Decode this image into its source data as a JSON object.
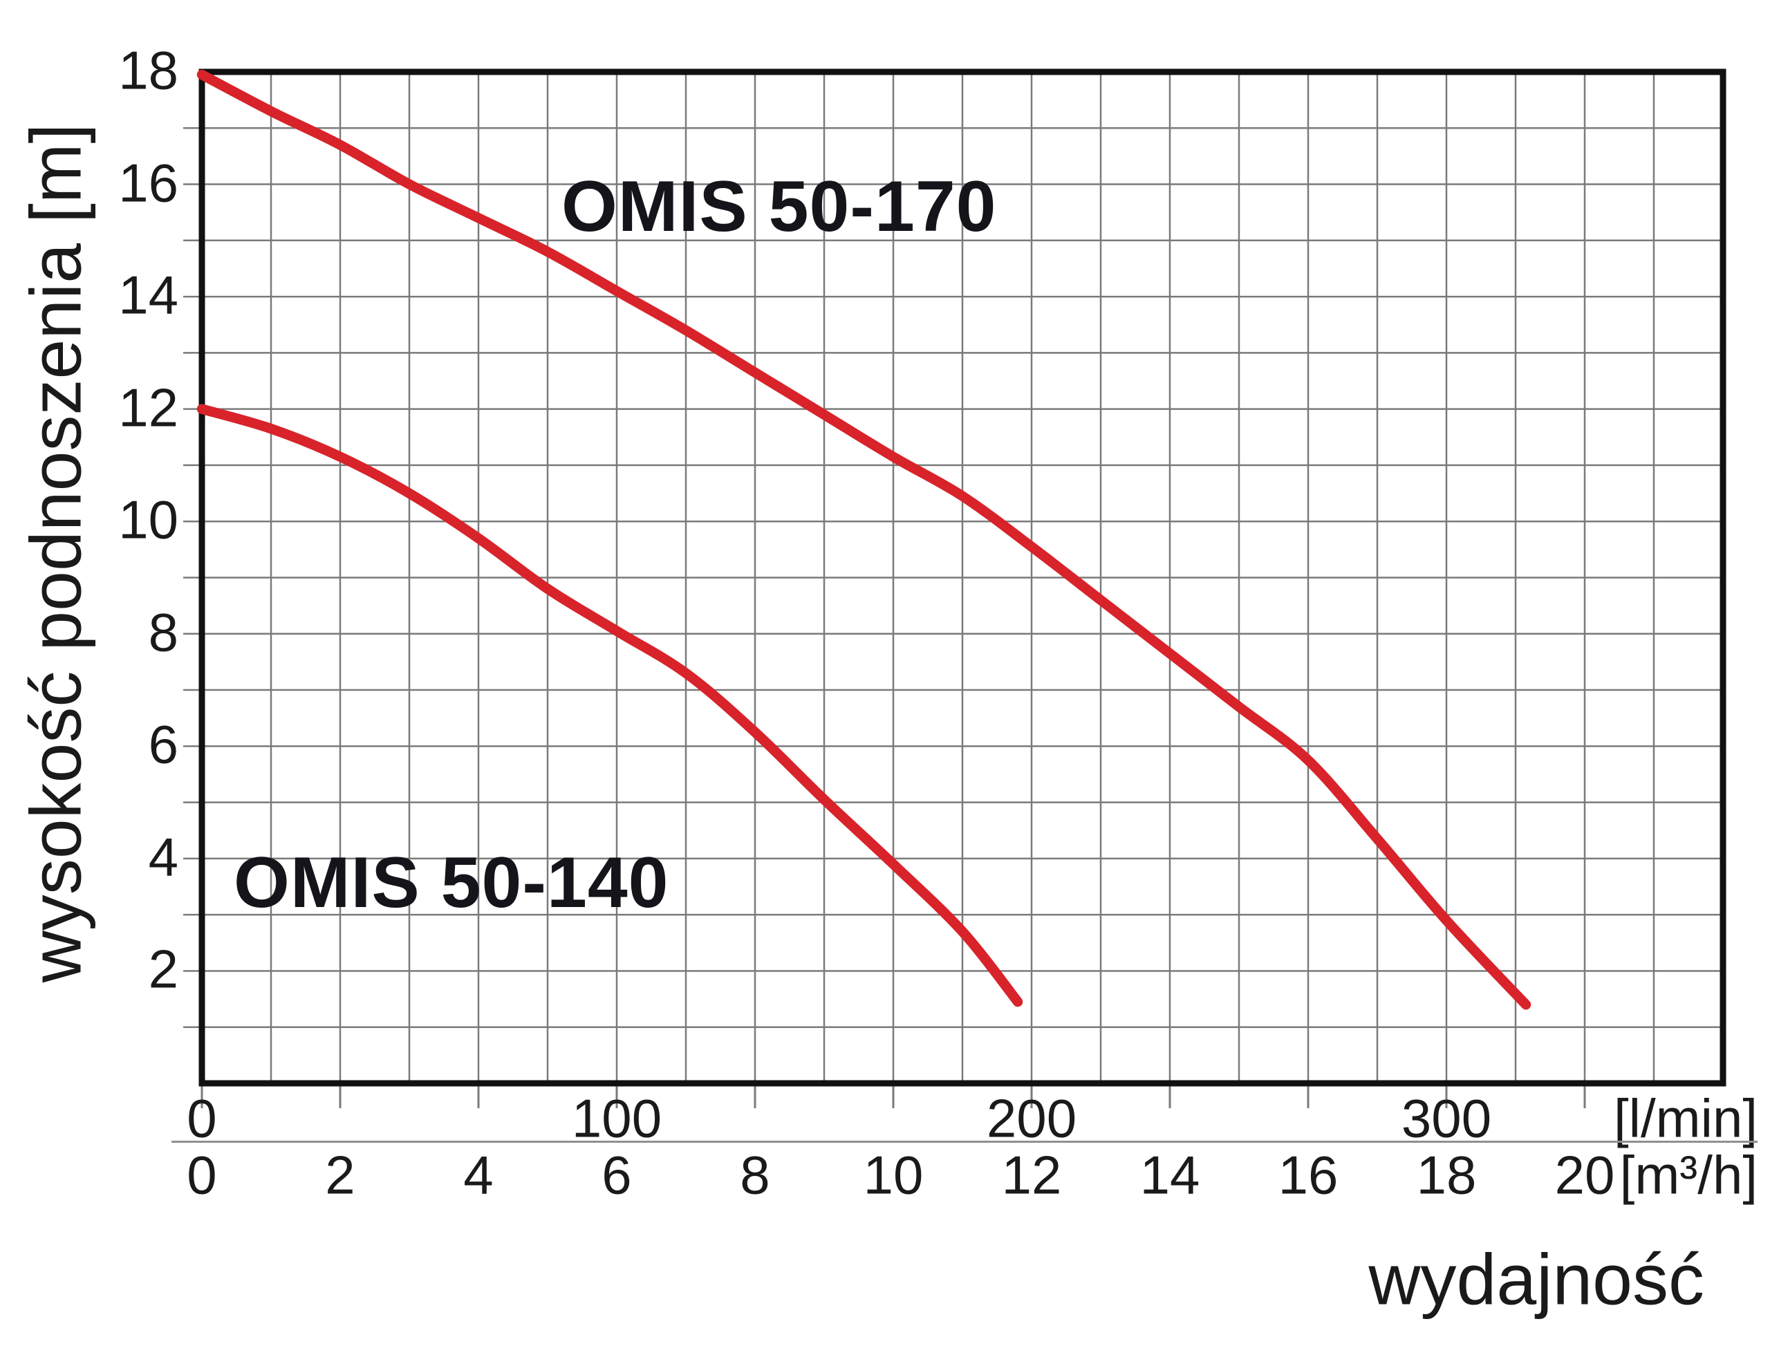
{
  "chart_data": {
    "type": "line",
    "title": "",
    "xlabel": "wydajność",
    "ylabel": "wysokość podnoszenia [m]",
    "x_axis": {
      "scales": [
        {
          "unit": "[l/min]",
          "ticks": [
            0,
            100,
            200,
            300
          ]
        },
        {
          "unit": "[m³/h]",
          "ticks": [
            0,
            2,
            4,
            6,
            8,
            10,
            12,
            14,
            16,
            18,
            20
          ]
        }
      ],
      "range_m3h": [
        0,
        22
      ],
      "gridline_step_m3h": 1
    },
    "y_axis": {
      "unit": "m",
      "ticks": [
        2,
        4,
        6,
        8,
        10,
        12,
        14,
        16,
        18
      ],
      "range": [
        0,
        18
      ],
      "gridline_step": 1
    },
    "series": [
      {
        "name": "OMIS 50-170",
        "color": "#d8232a",
        "points_m3h_vs_m": [
          [
            0,
            17.95
          ],
          [
            1,
            17.3
          ],
          [
            2,
            16.7
          ],
          [
            3,
            16.0
          ],
          [
            4,
            15.4
          ],
          [
            5,
            14.8
          ],
          [
            6,
            14.1
          ],
          [
            7,
            13.4
          ],
          [
            8,
            12.65
          ],
          [
            9,
            11.9
          ],
          [
            10,
            11.15
          ],
          [
            11,
            10.45
          ],
          [
            12,
            9.55
          ],
          [
            13,
            8.6
          ],
          [
            14,
            7.65
          ],
          [
            15,
            6.7
          ],
          [
            16,
            5.75
          ],
          [
            17,
            4.35
          ],
          [
            18,
            2.9
          ],
          [
            19.15,
            1.4
          ]
        ]
      },
      {
        "name": "OMIS 50-140",
        "color": "#d8232a",
        "points_m3h_vs_m": [
          [
            0,
            12.0
          ],
          [
            1,
            11.65
          ],
          [
            2,
            11.15
          ],
          [
            3,
            10.5
          ],
          [
            4,
            9.7
          ],
          [
            5,
            8.8
          ],
          [
            6,
            8.05
          ],
          [
            7,
            7.3
          ],
          [
            8,
            6.25
          ],
          [
            9,
            5.05
          ],
          [
            10,
            3.9
          ],
          [
            11,
            2.7
          ],
          [
            11.8,
            1.45
          ]
        ]
      }
    ],
    "grid": true,
    "legend_position": "labels drawn next to curves"
  },
  "labels": {
    "curve_top": "OMIS 50-170",
    "curve_bottom": "OMIS 50-140",
    "y_axis_title": "wysokość podnoszenia [m]",
    "x_axis_title": "wydajność",
    "unit_lmin": "[l/min]",
    "unit_m3h": "[m³/h]"
  },
  "colors": {
    "curve": "#d8232a",
    "grid": "#7a7a7a",
    "axis": "#111111",
    "text": "#1a1a1a",
    "separator": "#8f8f8f",
    "background": "#ffffff"
  }
}
